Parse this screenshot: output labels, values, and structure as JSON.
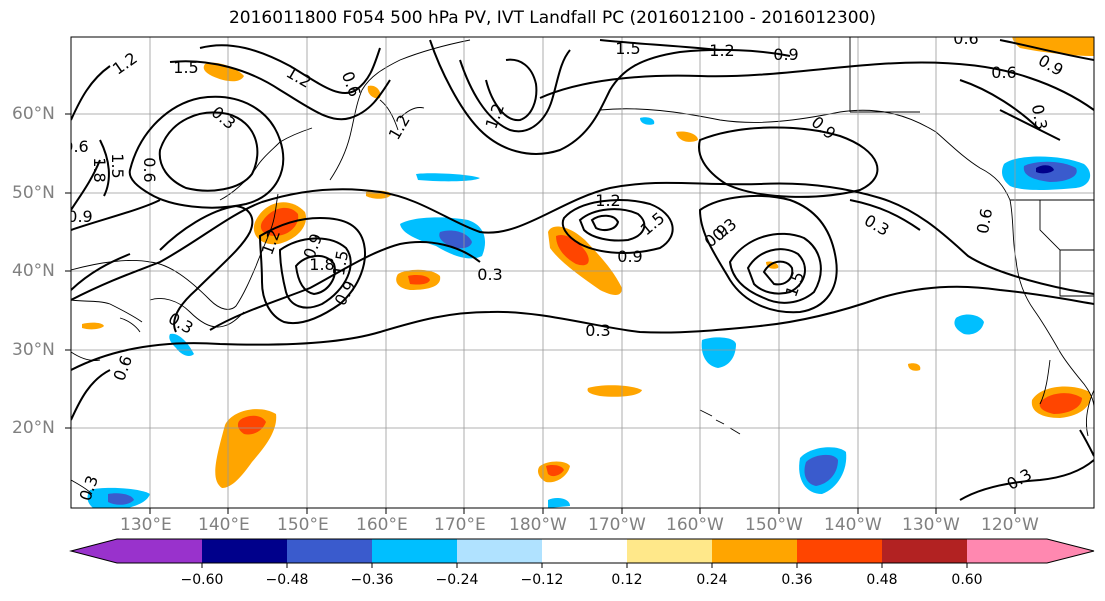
{
  "title": "2016011800 F054 500 hPa PV, IVT Landfall PC (2016012100 - 2016012300)",
  "lat_labels": [
    "60°N",
    "50°N",
    "40°N",
    "30°N",
    "20°N"
  ],
  "lon_labels": [
    "130°E",
    "140°E",
    "150°E",
    "160°E",
    "170°E",
    "180°W",
    "170°W",
    "160°W",
    "150°W",
    "140°W",
    "130°W",
    "120°W"
  ],
  "colorbar": {
    "ticks": [
      "−0.60",
      "−0.48",
      "−0.36",
      "−0.24",
      "−0.12",
      "0.12",
      "0.24",
      "0.36",
      "0.48",
      "0.60"
    ],
    "colors": [
      "#9932cc",
      "#00008b",
      "#3a5bcd",
      "#00bfff",
      "#b0e2ff",
      "#ffffff",
      "#ffe88a",
      "#ffa500",
      "#ff4500",
      "#b22222",
      "#ff88b0"
    ]
  },
  "contour_labels": [
    "1.2",
    "1.5",
    "1.2",
    "0.6",
    "0.3",
    "1.8",
    "1.5",
    "0.6",
    "0.9",
    "1.2",
    "1.2",
    "1.5",
    "1.8",
    "1.5",
    "0.9",
    "0.3",
    "0.9",
    "0.3",
    "1.5",
    "0.9",
    "0.3",
    "0.3",
    "0.6",
    "0.9",
    "0.3",
    "0.6",
    "0.6",
    "0.9",
    "1.2",
    "0.9",
    "1.2",
    "1.5",
    "0.3",
    "0.6",
    "0.3",
    "1.2",
    "0.9",
    "0.6",
    "0.3"
  ]
}
